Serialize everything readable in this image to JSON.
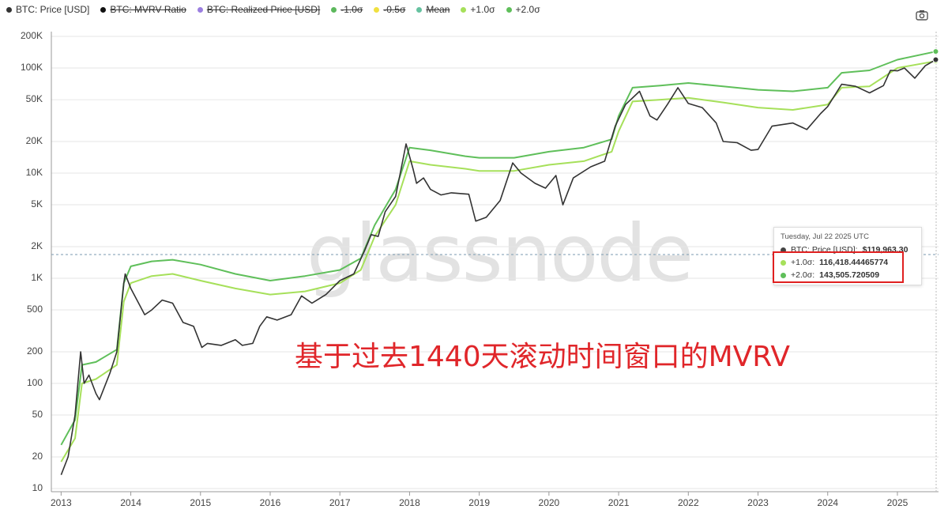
{
  "chart_data": {
    "type": "line",
    "log_y": true,
    "grid": true,
    "watermark": "glassnode",
    "annotation": "基于过去1440天滚动时间窗口的MVRV",
    "xlim": [
      2012.86,
      2025.59
    ],
    "xticks": [
      2013,
      2014,
      2015,
      2016,
      2017,
      2018,
      2019,
      2020,
      2021,
      2022,
      2023,
      2024,
      2025
    ],
    "ylim": [
      10,
      200000
    ],
    "yticks": [
      10,
      20,
      50,
      100,
      200,
      500,
      {
        "value": 1000,
        "label": "1K"
      },
      {
        "value": 2000,
        "label": "2K"
      },
      {
        "value": 5000,
        "label": "5K"
      },
      {
        "value": 10000,
        "label": "10K"
      },
      {
        "value": 20000,
        "label": "20K"
      },
      {
        "value": 50000,
        "label": "50K"
      },
      {
        "value": 100000,
        "label": "100K"
      },
      {
        "value": 200000,
        "label": "200K"
      }
    ],
    "series": [
      {
        "name": "BTC: Price [USD]",
        "color": "#333333",
        "x": [
          2013.0,
          2013.1,
          2013.2,
          2013.28,
          2013.33,
          2013.4,
          2013.5,
          2013.55,
          2013.7,
          2013.8,
          2013.9,
          2013.92,
          2014.0,
          2014.1,
          2014.2,
          2014.3,
          2014.45,
          2014.6,
          2014.75,
          2014.9,
          2015.02,
          2015.1,
          2015.3,
          2015.5,
          2015.6,
          2015.75,
          2015.85,
          2015.95,
          2016.1,
          2016.3,
          2016.45,
          2016.6,
          2016.8,
          2017.0,
          2017.2,
          2017.35,
          2017.45,
          2017.55,
          2017.65,
          2017.8,
          2017.95,
          2018.05,
          2018.1,
          2018.2,
          2018.3,
          2018.45,
          2018.6,
          2018.85,
          2018.95,
          2019.1,
          2019.3,
          2019.48,
          2019.6,
          2019.8,
          2019.95,
          2020.1,
          2020.2,
          2020.35,
          2020.6,
          2020.8,
          2020.95,
          2021.1,
          2021.3,
          2021.45,
          2021.55,
          2021.7,
          2021.85,
          2022.0,
          2022.2,
          2022.4,
          2022.5,
          2022.7,
          2022.9,
          2023.0,
          2023.2,
          2023.5,
          2023.7,
          2023.9,
          2024.0,
          2024.2,
          2024.4,
          2024.6,
          2024.8,
          2024.9,
          2025.0,
          2025.1,
          2025.25,
          2025.4,
          2025.55
        ],
        "values": [
          13.5,
          20,
          50,
          200,
          100,
          120,
          80,
          70,
          125,
          200,
          900,
          1100,
          800,
          600,
          450,
          500,
          620,
          580,
          380,
          350,
          220,
          240,
          230,
          260,
          230,
          240,
          350,
          430,
          400,
          450,
          680,
          580,
          700,
          950,
          1100,
          1800,
          2600,
          2500,
          4300,
          6000,
          19000,
          11000,
          8000,
          9000,
          7000,
          6200,
          6500,
          6300,
          3500,
          3800,
          5500,
          12500,
          10000,
          8000,
          7200,
          9500,
          5000,
          9000,
          11500,
          13000,
          28000,
          45000,
          60000,
          35000,
          32000,
          45000,
          65000,
          46000,
          42000,
          30000,
          20000,
          19500,
          16500,
          16800,
          28000,
          30000,
          26000,
          37000,
          43000,
          70000,
          67000,
          58000,
          68000,
          95000,
          94000,
          100000,
          80000,
          105000,
          119963.3
        ]
      },
      {
        "name": "BTC: MVRV Ratio",
        "color": "#111111",
        "hidden": true
      },
      {
        "name": "BTC: Realized Price [USD]",
        "color": "#9b7fe0",
        "hidden": true
      },
      {
        "name": "-1.0σ",
        "color": "#5cb85c",
        "hidden": true
      },
      {
        "name": "-0.5σ",
        "color": "#f0e040",
        "hidden": true
      },
      {
        "name": "Mean",
        "color": "#66c2a0",
        "hidden": true
      },
      {
        "name": "+1.0σ",
        "color": "#a6e05a",
        "x": [
          2013.0,
          2013.2,
          2013.3,
          2013.5,
          2013.8,
          2013.9,
          2014.0,
          2014.3,
          2014.6,
          2015.0,
          2015.5,
          2016.0,
          2016.5,
          2017.0,
          2017.3,
          2017.5,
          2017.8,
          2018.0,
          2018.3,
          2018.8,
          2019.0,
          2019.5,
          2020.0,
          2020.5,
          2020.9,
          2021.0,
          2021.2,
          2021.6,
          2022.0,
          2022.5,
          2023.0,
          2023.5,
          2024.0,
          2024.2,
          2024.6,
          2025.0,
          2025.55
        ],
        "values": [
          18,
          30,
          100,
          110,
          150,
          600,
          900,
          1050,
          1100,
          950,
          800,
          700,
          750,
          900,
          1200,
          2500,
          5000,
          13000,
          12000,
          11000,
          10500,
          10500,
          12000,
          13000,
          16000,
          25000,
          48000,
          50000,
          52000,
          47000,
          42000,
          40000,
          45000,
          65000,
          67000,
          100000,
          116418.44465774
        ]
      },
      {
        "name": "+2.0σ",
        "color": "#5fbf5a",
        "x": [
          2013.0,
          2013.2,
          2013.3,
          2013.5,
          2013.8,
          2013.9,
          2014.0,
          2014.3,
          2014.6,
          2015.0,
          2015.5,
          2016.0,
          2016.5,
          2017.0,
          2017.3,
          2017.5,
          2017.8,
          2018.0,
          2018.3,
          2018.8,
          2019.0,
          2019.5,
          2020.0,
          2020.5,
          2020.9,
          2021.0,
          2021.2,
          2021.6,
          2022.0,
          2022.5,
          2023.0,
          2023.5,
          2024.0,
          2024.2,
          2024.6,
          2025.0,
          2025.55
        ],
        "values": [
          26,
          45,
          150,
          160,
          210,
          900,
          1300,
          1450,
          1500,
          1350,
          1100,
          950,
          1050,
          1200,
          1550,
          3200,
          7000,
          17500,
          16500,
          14500,
          14000,
          14000,
          16000,
          17500,
          21000,
          35000,
          65000,
          68000,
          72000,
          67000,
          62000,
          60000,
          65000,
          90000,
          95000,
          120000,
          143505.720509
        ]
      }
    ],
    "tooltip": {
      "date": "Tuesday, Jul 22 2025 UTC",
      "items": [
        {
          "label": "BTC: Price [USD]:",
          "value_label": "$119,963.30",
          "color": "#444444"
        },
        {
          "label": "+1.0σ:",
          "value_label": "116,418.44465774",
          "color": "#a6e05a"
        },
        {
          "label": "+2.0σ:",
          "value_label": "143,505.720509",
          "color": "#5fbf5a"
        }
      ]
    }
  }
}
